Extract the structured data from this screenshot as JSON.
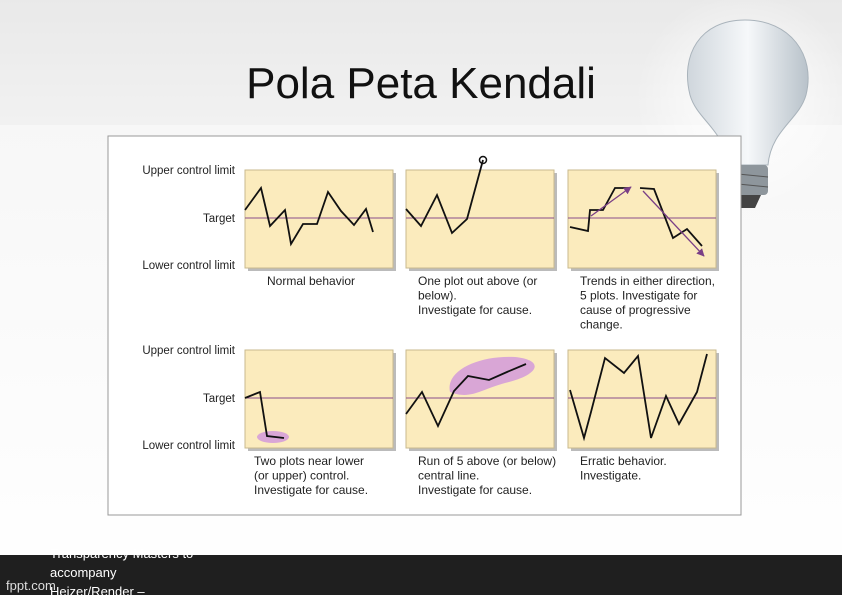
{
  "title": "Pola Peta Kendali",
  "figure": {
    "row_labels": {
      "upper": "Upper control limit",
      "target": "Target",
      "lower": "Lower control limit"
    },
    "panels": [
      {
        "caption": [
          "Normal behavior"
        ]
      },
      {
        "caption": [
          "One plot out above (or",
          "below).",
          "Investigate for cause."
        ]
      },
      {
        "caption": [
          "Trends in either direction,",
          "5 plots. Investigate for",
          "cause of progressive",
          "change."
        ]
      },
      {
        "caption": [
          "Two plots near lower",
          "(or upper) control.",
          "Investigate for cause."
        ]
      },
      {
        "caption": [
          "Run of 5 above (or below)",
          "central line.",
          "Investigate for cause."
        ]
      },
      {
        "caption": [
          "Erratic behavior.",
          "Investigate."
        ]
      }
    ]
  },
  "footer": {
    "note": [
      "Transparency Masters to",
      "accompany",
      "Heizer/Render –"
    ],
    "brand": "fppt.com"
  }
}
